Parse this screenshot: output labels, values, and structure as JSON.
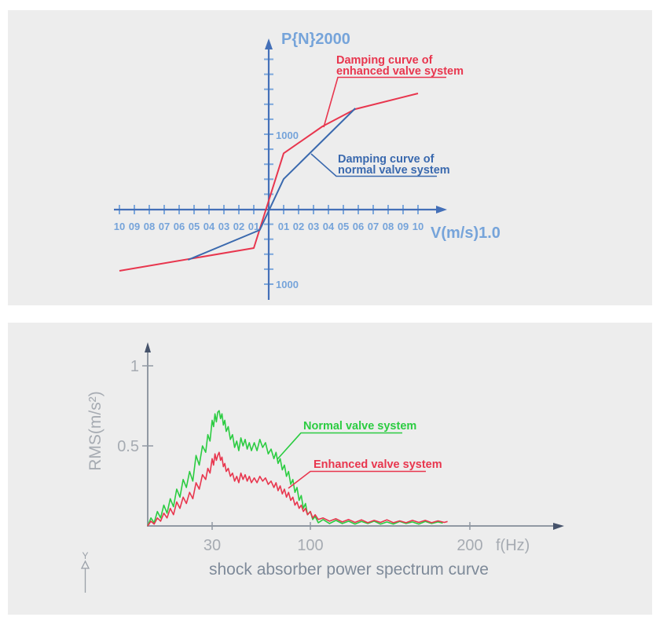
{
  "colors": {
    "panel_bg": "#ededed",
    "axis_blue": "#4470b8",
    "tick_blue": "#7da8dc",
    "label_blue": "#76a4da",
    "red": "#e8364e",
    "curve_blue": "#3a69ae",
    "green": "#2bcc41",
    "gray_axis": "#9199a3",
    "gray_label": "#a6abb2",
    "title_gray": "#7e8a99",
    "dark_arrow": "#46536b",
    "glyph_gray": "#9aa0a8"
  },
  "decoration": {
    "y_marker": "Y"
  },
  "chart_data": [
    {
      "id": "damping-curves",
      "type": "line",
      "title": "",
      "xlabel": "V(m/s)1.0",
      "ylabel": "P{N}2000",
      "xlim": [
        -1.0,
        1.0
      ],
      "ylim": [
        -2000,
        2000
      ],
      "x_tick_step": 0.1,
      "y_tick_step": 200,
      "x_tick_labels_left": [
        "10",
        "09",
        "08",
        "07",
        "06",
        "05",
        "04",
        "03",
        "02",
        "01"
      ],
      "x_tick_labels_right": [
        "01",
        "02",
        "03",
        "04",
        "05",
        "06",
        "07",
        "08",
        "09",
        "10"
      ],
      "y_value_label_pos": "1000",
      "y_value_label_neg": "1000",
      "legend_position": "annotations-with-leader-lines",
      "grid": false,
      "series": [
        {
          "name": "Damping curve of enhanced valve system",
          "label_lines": [
            "Damping curve of",
            "enhanced valve system"
          ],
          "color": "#e8364e",
          "points": [
            [
              -1.0,
              -835
            ],
            [
              -0.1,
              -527
            ],
            [
              0.1,
              757
            ],
            [
              0.36,
              1122
            ],
            [
              0.58,
              1356
            ],
            [
              1.0,
              1569
            ]
          ]
        },
        {
          "name": "Damping curve of normal valve system",
          "label_lines": [
            "Damping curve of",
            "normal valve system"
          ],
          "color": "#3a69ae",
          "points": [
            [
              -0.54,
              -686
            ],
            [
              -0.06,
              -282
            ],
            [
              0.1,
              409
            ],
            [
              0.58,
              1367
            ]
          ]
        }
      ]
    },
    {
      "id": "power-spectrum",
      "type": "line",
      "title": "shock absorber power spectrum curve",
      "xlabel": "f(Hz)",
      "ylabel": "RMS(m/s²)",
      "xlim": [
        0,
        260
      ],
      "ylim": [
        0,
        1.15
      ],
      "x_ticks": [
        30,
        100,
        200
      ],
      "y_ticks": [
        1,
        0.5
      ],
      "legend_position": "annotations-with-leader-lines",
      "grid": false,
      "series": [
        {
          "name": "Normal valve system",
          "color": "#2bcc41",
          "points": [
            [
              0,
              0
            ],
            [
              1.5,
              0.05
            ],
            [
              3,
              0.02
            ],
            [
              4.5,
              0.09
            ],
            [
              6,
              0.05
            ],
            [
              7.5,
              0.13
            ],
            [
              9,
              0.08
            ],
            [
              10.5,
              0.17
            ],
            [
              12,
              0.12
            ],
            [
              13.5,
              0.23
            ],
            [
              15,
              0.18
            ],
            [
              16.5,
              0.29
            ],
            [
              18,
              0.24
            ],
            [
              19.5,
              0.34
            ],
            [
              21,
              0.28
            ],
            [
              22.5,
              0.44
            ],
            [
              24,
              0.38
            ],
            [
              25.5,
              0.5
            ],
            [
              27,
              0.46
            ],
            [
              28,
              0.57
            ],
            [
              29,
              0.53
            ],
            [
              30,
              0.66
            ],
            [
              31,
              0.62
            ],
            [
              32,
              0.7
            ],
            [
              33,
              0.65
            ],
            [
              34,
              0.71
            ],
            [
              35,
              0.72
            ],
            [
              36,
              0.67
            ],
            [
              37,
              0.7
            ],
            [
              38,
              0.63
            ],
            [
              39,
              0.66
            ],
            [
              40,
              0.59
            ],
            [
              41.5,
              0.62
            ],
            [
              43,
              0.54
            ],
            [
              44.5,
              0.57
            ],
            [
              46,
              0.49
            ],
            [
              47.5,
              0.53
            ],
            [
              49,
              0.47
            ],
            [
              50.5,
              0.55
            ],
            [
              52,
              0.5
            ],
            [
              53.5,
              0.54
            ],
            [
              55,
              0.48
            ],
            [
              56.5,
              0.52
            ],
            [
              58,
              0.47
            ],
            [
              60,
              0.52
            ],
            [
              62,
              0.47
            ],
            [
              64,
              0.54
            ],
            [
              66,
              0.49
            ],
            [
              68,
              0.52
            ],
            [
              70,
              0.45
            ],
            [
              72,
              0.48
            ],
            [
              74,
              0.42
            ],
            [
              75.5,
              0.46
            ],
            [
              77,
              0.39
            ],
            [
              78.5,
              0.42
            ],
            [
              80,
              0.35
            ],
            [
              81.5,
              0.38
            ],
            [
              83,
              0.31
            ],
            [
              84.5,
              0.34
            ],
            [
              86,
              0.26
            ],
            [
              87.5,
              0.29
            ],
            [
              89,
              0.21
            ],
            [
              90.5,
              0.24
            ],
            [
              92,
              0.16
            ],
            [
              93.5,
              0.19
            ],
            [
              95,
              0.11
            ],
            [
              96.5,
              0.14
            ],
            [
              98,
              0.07
            ],
            [
              100,
              0.09
            ],
            [
              101.5,
              0.04
            ],
            [
              103,
              0.06
            ],
            [
              105,
              0.02
            ],
            [
              108,
              0.04
            ],
            [
              112,
              0.015
            ],
            [
              116,
              0.035
            ],
            [
              120,
              0.015
            ],
            [
              124,
              0.03
            ],
            [
              128,
              0.012
            ],
            [
              132,
              0.028
            ],
            [
              136,
              0.015
            ],
            [
              140,
              0.03
            ],
            [
              144,
              0.012
            ],
            [
              148,
              0.025
            ],
            [
              152,
              0.012
            ],
            [
              156,
              0.028
            ],
            [
              160,
              0.015
            ],
            [
              164,
              0.025
            ],
            [
              168,
              0.012
            ],
            [
              172,
              0.028
            ],
            [
              176,
              0.015
            ],
            [
              180,
              0.025
            ],
            [
              183,
              0.018
            ]
          ]
        },
        {
          "name": "Enhanced valve system",
          "color": "#e8364e",
          "points": [
            [
              0,
              0
            ],
            [
              1.5,
              0.03
            ],
            [
              3,
              0.012
            ],
            [
              4.5,
              0.05
            ],
            [
              6,
              0.03
            ],
            [
              7.5,
              0.08
            ],
            [
              9,
              0.05
            ],
            [
              10.5,
              0.11
            ],
            [
              12,
              0.07
            ],
            [
              13.5,
              0.15
            ],
            [
              15,
              0.11
            ],
            [
              16.5,
              0.18
            ],
            [
              18,
              0.14
            ],
            [
              19.5,
              0.21
            ],
            [
              21,
              0.17
            ],
            [
              22.5,
              0.27
            ],
            [
              24,
              0.23
            ],
            [
              25.5,
              0.32
            ],
            [
              27,
              0.29
            ],
            [
              28,
              0.36
            ],
            [
              29,
              0.33
            ],
            [
              30,
              0.42
            ],
            [
              31,
              0.38
            ],
            [
              32,
              0.45
            ],
            [
              33,
              0.41
            ],
            [
              34,
              0.44
            ],
            [
              35,
              0.46
            ],
            [
              36,
              0.41
            ],
            [
              37,
              0.43
            ],
            [
              38,
              0.37
            ],
            [
              39,
              0.39
            ],
            [
              40,
              0.34
            ],
            [
              41.5,
              0.36
            ],
            [
              43,
              0.31
            ],
            [
              44.5,
              0.33
            ],
            [
              46,
              0.28
            ],
            [
              47.5,
              0.31
            ],
            [
              49,
              0.27
            ],
            [
              50.5,
              0.33
            ],
            [
              52,
              0.29
            ],
            [
              53.5,
              0.32
            ],
            [
              55,
              0.28
            ],
            [
              56.5,
              0.31
            ],
            [
              58,
              0.27
            ],
            [
              60,
              0.3
            ],
            [
              62,
              0.27
            ],
            [
              64,
              0.31
            ],
            [
              66,
              0.28
            ],
            [
              68,
              0.3
            ],
            [
              70,
              0.26
            ],
            [
              72,
              0.28
            ],
            [
              74,
              0.24
            ],
            [
              75.5,
              0.27
            ],
            [
              77,
              0.22
            ],
            [
              78.5,
              0.25
            ],
            [
              80,
              0.2
            ],
            [
              81.5,
              0.23
            ],
            [
              83,
              0.18
            ],
            [
              84.5,
              0.21
            ],
            [
              86,
              0.16
            ],
            [
              87.5,
              0.18
            ],
            [
              89,
              0.13
            ],
            [
              90.5,
              0.15
            ],
            [
              92,
              0.11
            ],
            [
              93.5,
              0.13
            ],
            [
              95,
              0.09
            ],
            [
              96.5,
              0.11
            ],
            [
              98,
              0.07
            ],
            [
              100,
              0.09
            ],
            [
              101.5,
              0.05
            ],
            [
              103,
              0.07
            ],
            [
              105,
              0.04
            ],
            [
              108,
              0.05
            ],
            [
              112,
              0.03
            ],
            [
              116,
              0.045
            ],
            [
              120,
              0.025
            ],
            [
              124,
              0.04
            ],
            [
              128,
              0.022
            ],
            [
              132,
              0.038
            ],
            [
              136,
              0.02
            ],
            [
              140,
              0.035
            ],
            [
              144,
              0.022
            ],
            [
              148,
              0.038
            ],
            [
              152,
              0.02
            ],
            [
              156,
              0.032
            ],
            [
              160,
              0.02
            ],
            [
              164,
              0.035
            ],
            [
              168,
              0.022
            ],
            [
              172,
              0.035
            ],
            [
              176,
              0.02
            ],
            [
              180,
              0.032
            ],
            [
              184,
              0.022
            ],
            [
              186,
              0.028
            ]
          ]
        }
      ]
    }
  ]
}
